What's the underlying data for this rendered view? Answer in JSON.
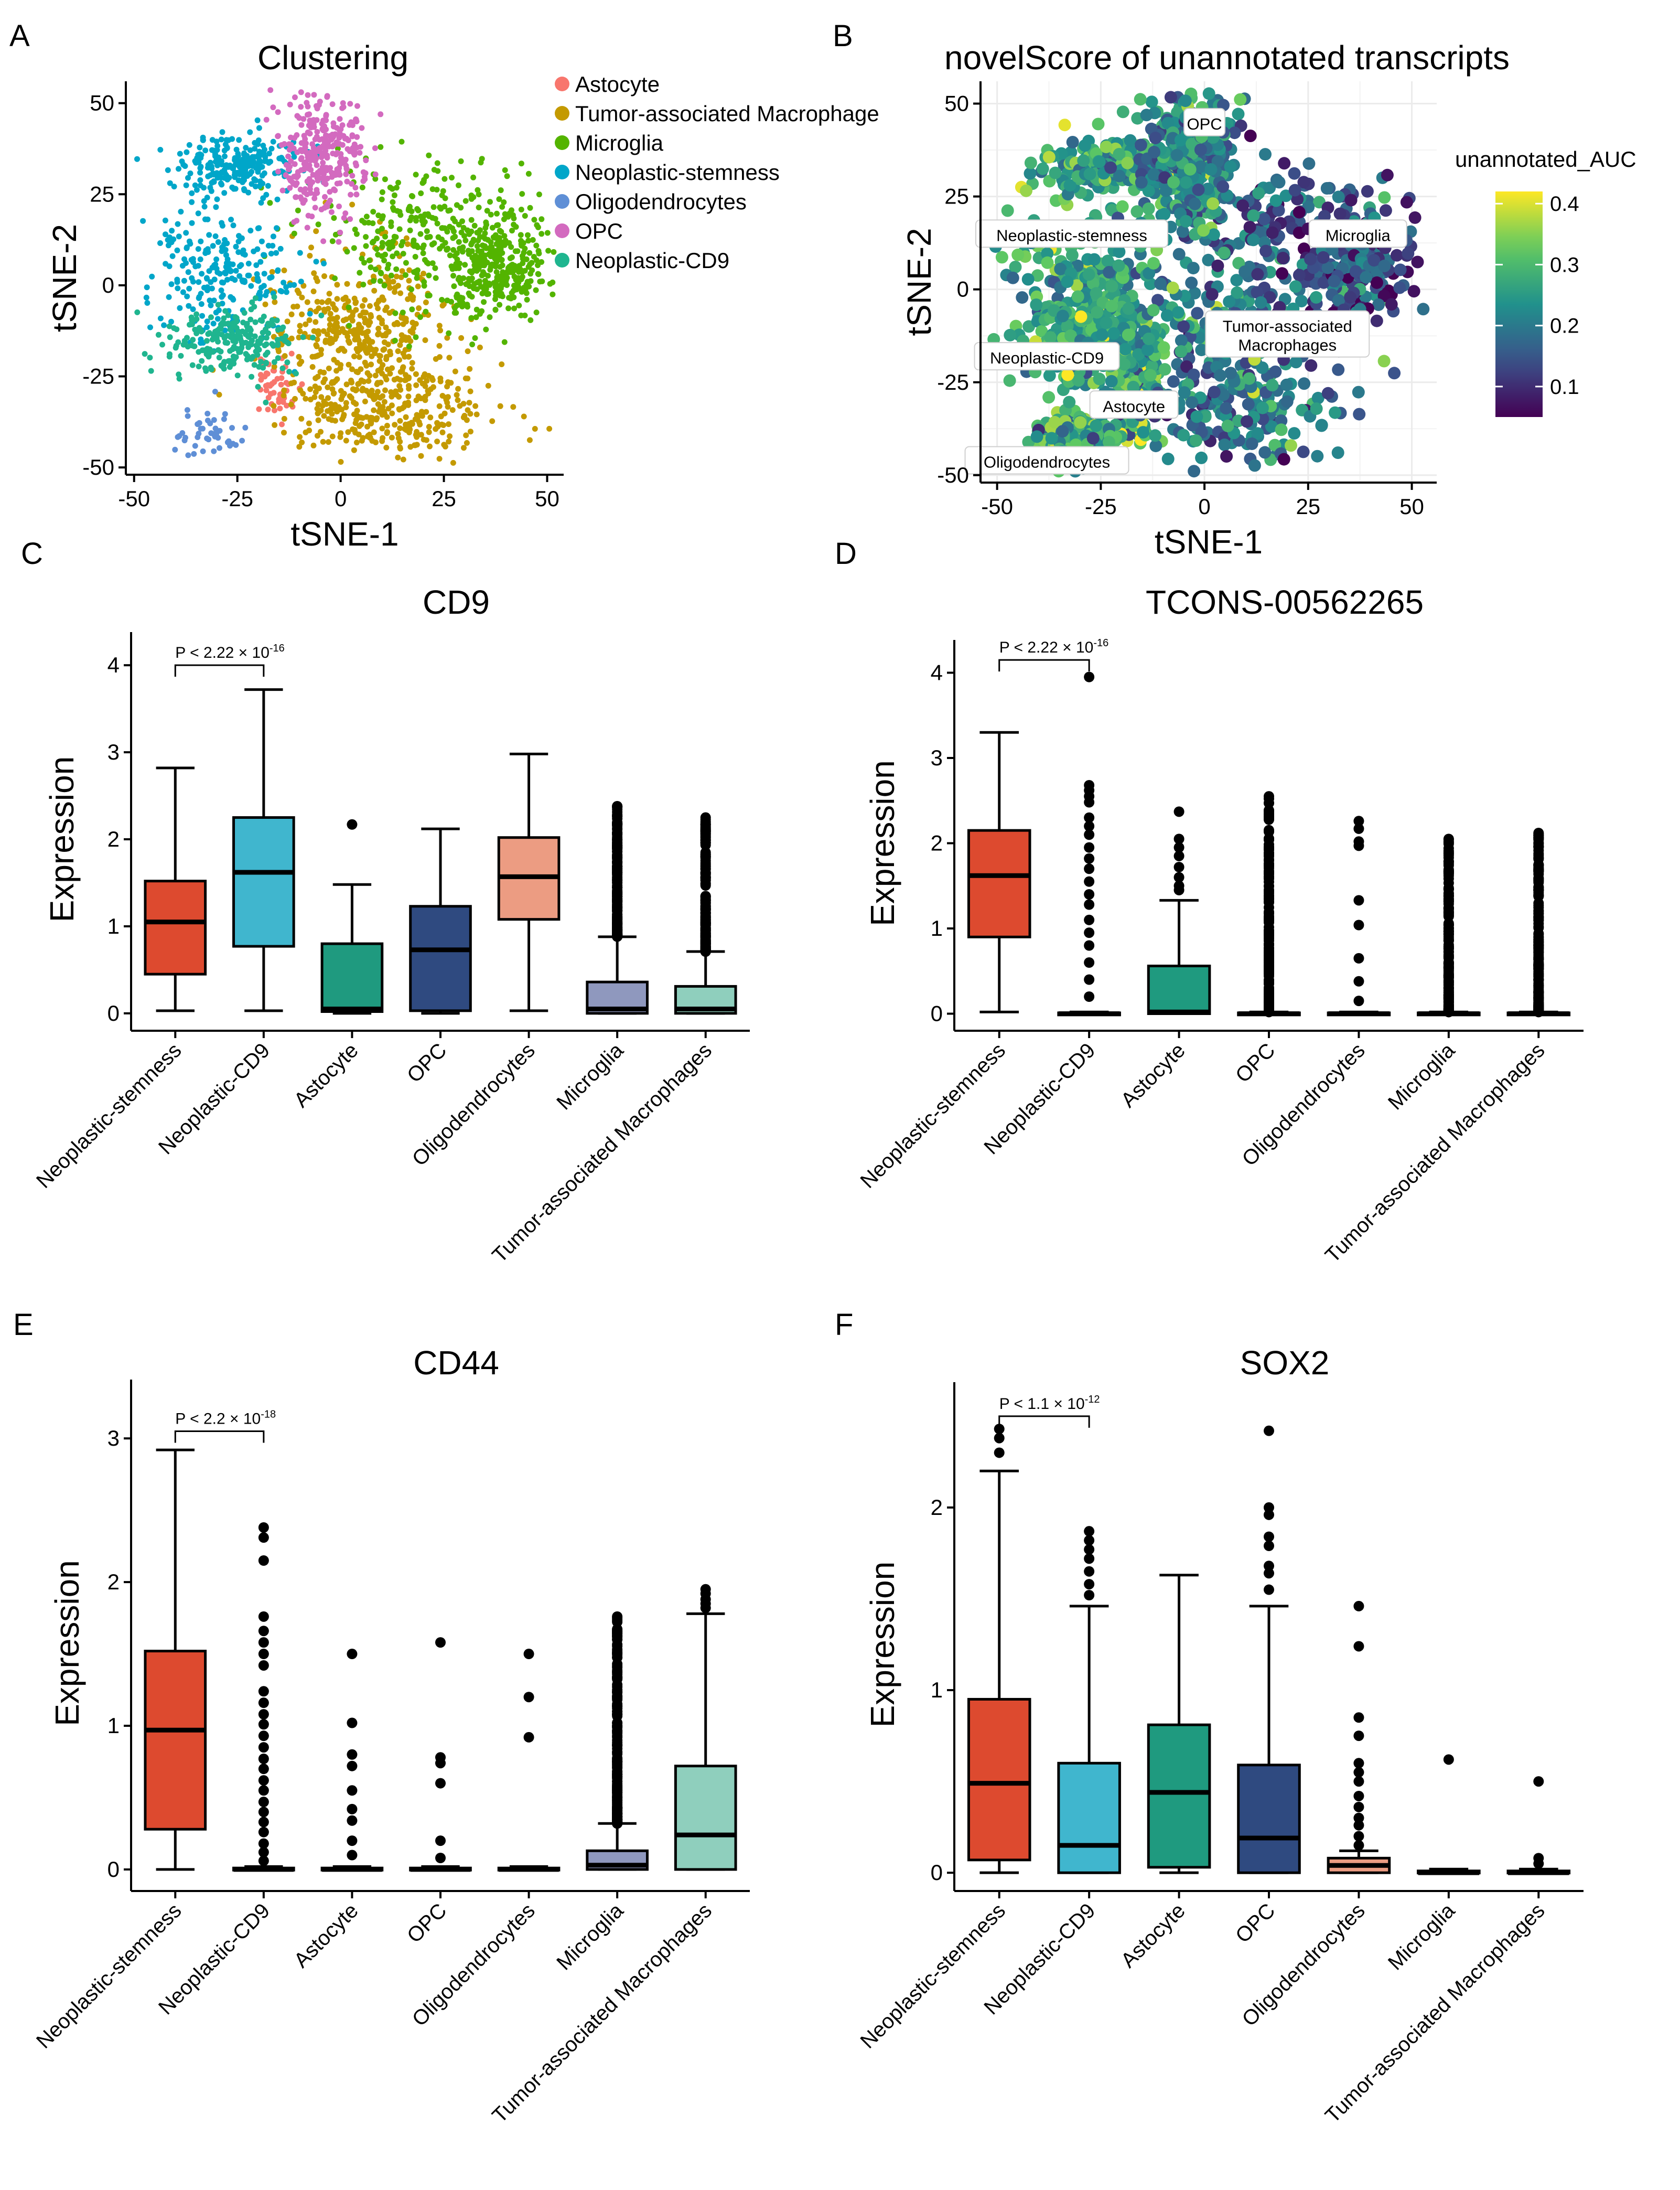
{
  "chart_data": [
    {
      "panel": "A",
      "type": "scatter",
      "title": "Clustering",
      "xlabel": "tSNE-1",
      "ylabel": "tSNE-2",
      "xlim": [
        -52,
        54
      ],
      "ylim": [
        -52,
        56
      ],
      "xticks": [
        -50,
        -25,
        0,
        25,
        50
      ],
      "yticks": [
        -50,
        -25,
        0,
        25,
        50
      ],
      "grid": false,
      "legend_position": "right",
      "legend": [
        {
          "label": "Astocyte",
          "color": "#F8766D"
        },
        {
          "label": "Tumor-associated Macrophage",
          "color": "#C49A00"
        },
        {
          "label": "Microglia",
          "color": "#53B400"
        },
        {
          "label": "Neoplastic-stemness",
          "color": "#00A6C9"
        },
        {
          "label": "Oligodendrocytes",
          "color": "#5F8FD6"
        },
        {
          "label": "OPC",
          "color": "#D36ABF"
        },
        {
          "label": "Neoplastic-CD9",
          "color": "#1FB58F"
        }
      ],
      "clusters": [
        {
          "name": "Astocyte",
          "color": "#F8766D",
          "n": 50,
          "regions": [
            {
              "cx": -16,
              "cy": -28,
              "sx": 2.2,
              "sy": 5
            }
          ]
        },
        {
          "name": "Tumor-associated Macrophage",
          "color": "#C49A00",
          "n": 700,
          "regions": [
            {
              "cx": 5,
              "cy": -10,
              "sx": 10,
              "sy": 10
            },
            {
              "cx": 10,
              "cy": -33,
              "sx": 12,
              "sy": 7
            }
          ]
        },
        {
          "name": "Microglia",
          "color": "#53B400",
          "n": 600,
          "regions": [
            {
              "cx": 22,
              "cy": 14,
              "sx": 13,
              "sy": 10
            },
            {
              "cx": 38,
              "cy": 5,
              "sx": 6,
              "sy": 7
            }
          ]
        },
        {
          "name": "Neoplastic-stemness",
          "color": "#00A6C9",
          "n": 480,
          "regions": [
            {
              "cx": -30,
              "cy": 5,
              "sx": 10,
              "sy": 9
            },
            {
              "cx": -25,
              "cy": 33,
              "sx": 8,
              "sy": 4
            }
          ]
        },
        {
          "name": "Oligodendrocytes",
          "color": "#5F8FD6",
          "n": 45,
          "regions": [
            {
              "cx": -32,
              "cy": -41,
              "sx": 4,
              "sy": 3
            }
          ]
        },
        {
          "name": "OPC",
          "color": "#D36ABF",
          "n": 320,
          "regions": [
            {
              "cx": -4,
              "cy": 36,
              "sx": 5.5,
              "sy": 9
            }
          ]
        },
        {
          "name": "Neoplastic-CD9",
          "color": "#1FB58F",
          "n": 230,
          "regions": [
            {
              "cx": -27,
              "cy": -15,
              "sx": 8,
              "sy": 5
            }
          ]
        }
      ]
    },
    {
      "panel": "B",
      "type": "scatter",
      "title": "novelScore of unannotated transcripts",
      "xlabel": "tSNE-1",
      "ylabel": "tSNE-2",
      "xlim": [
        -54,
        56
      ],
      "ylim": [
        -52,
        56
      ],
      "xticks": [
        -50,
        -25,
        0,
        25,
        50
      ],
      "yticks": [
        -50,
        -25,
        0,
        25,
        50
      ],
      "grid": true,
      "colorbar": {
        "title": "unannotated_AUC",
        "min": 0.05,
        "max": 0.42,
        "ticks": [
          0.1,
          0.2,
          0.3,
          0.4
        ]
      },
      "cluster_labels": [
        "OPC",
        "Neoplastic-stemness",
        "Microglia",
        "Tumor-associated\nMacrophages",
        "Neoplastic-CD9",
        "Astocyte",
        "Oligodendrocytes"
      ],
      "n_points": 2400
    },
    {
      "panel": "C",
      "type": "box",
      "title": "CD9",
      "ylabel": "Expression",
      "ylim": [
        -0.2,
        4.2
      ],
      "yticks": [
        0,
        1,
        2,
        3,
        4
      ],
      "categories": [
        "Neoplastic-stemness",
        "Neoplastic-CD9",
        "Astocyte",
        "OPC",
        "Oligodendrocytes",
        "Microglia",
        "Tumor-associated Macrophages"
      ],
      "colors": [
        "#DD4A2F",
        "#40B6CE",
        "#1F9A7F",
        "#2F4A80",
        "#EC9C82",
        "#8F98BE",
        "#8FCFBD"
      ],
      "boxes": [
        {
          "q1": 0.45,
          "median": 1.05,
          "q3": 1.52,
          "whislo": 0.03,
          "whishi": 2.82,
          "outliers": []
        },
        {
          "q1": 0.77,
          "median": 1.62,
          "q3": 2.25,
          "whislo": 0.03,
          "whishi": 3.72,
          "outliers": []
        },
        {
          "q1": 0.02,
          "median": 0.05,
          "q3": 0.8,
          "whislo": 0.0,
          "whishi": 1.48,
          "outliers": [
            2.17
          ]
        },
        {
          "q1": 0.03,
          "median": 0.73,
          "q3": 1.23,
          "whislo": 0.0,
          "whishi": 2.12,
          "outliers": []
        },
        {
          "q1": 1.08,
          "median": 1.57,
          "q3": 2.02,
          "whislo": 0.03,
          "whishi": 2.98,
          "outliers": []
        },
        {
          "q1": 0.0,
          "median": 0.05,
          "q3": 0.36,
          "whislo": 0.0,
          "whishi": 0.88,
          "outlier_range": [
            0.88,
            2.38
          ],
          "dense": true
        },
        {
          "q1": 0.0,
          "median": 0.05,
          "q3": 0.31,
          "whislo": 0.0,
          "whishi": 0.71,
          "outlier_range": [
            0.71,
            2.25
          ],
          "dense": true
        }
      ],
      "annotation": {
        "text_main": "P < 2.22 × 10",
        "text_exp": "-16",
        "from": 0,
        "to": 1,
        "y": 4.0
      }
    },
    {
      "panel": "D",
      "type": "box",
      "title": "TCONS-00562265",
      "ylabel": "Expression",
      "ylim": [
        -0.2,
        4.2
      ],
      "yticks": [
        0,
        1,
        2,
        3,
        4
      ],
      "categories": [
        "Neoplastic-stemness",
        "Neoplastic-CD9",
        "Astocyte",
        "OPC",
        "Oligodendrocytes",
        "Microglia",
        "Tumor-associated Macrophages"
      ],
      "colors": [
        "#DD4A2F",
        "#40B6CE",
        "#1F9A7F",
        "#2F4A80",
        "#EC9C82",
        "#8F98BE",
        "#8FCFBD"
      ],
      "boxes": [
        {
          "q1": 0.9,
          "median": 1.62,
          "q3": 2.15,
          "whislo": 0.02,
          "whishi": 3.3,
          "outliers": []
        },
        {
          "q1": 0.0,
          "median": 0.0,
          "q3": 0.01,
          "whislo": 0.0,
          "whishi": 0.02,
          "outliers": [
            3.95,
            2.68,
            2.62,
            2.55,
            2.48,
            2.3,
            2.2,
            2.1,
            1.95,
            1.82,
            1.7,
            1.55,
            1.4,
            1.28,
            1.1,
            0.95,
            0.8,
            0.6,
            0.4,
            0.2
          ]
        },
        {
          "q1": 0.0,
          "median": 0.02,
          "q3": 0.56,
          "whislo": 0.0,
          "whishi": 1.33,
          "outliers": [
            2.37,
            2.05,
            1.95,
            1.85,
            1.72,
            1.6,
            1.5,
            1.45
          ]
        },
        {
          "q1": 0.0,
          "median": 0.0,
          "q3": 0.01,
          "whislo": 0.0,
          "whishi": 0.02,
          "outlier_range": [
            0.02,
            2.55
          ],
          "dense": true
        },
        {
          "q1": 0.0,
          "median": 0.0,
          "q3": 0.01,
          "whislo": 0.0,
          "whishi": 0.02,
          "outliers": [
            2.26,
            2.17,
            2.02,
            1.97,
            1.33,
            1.04,
            0.65,
            0.38,
            0.15
          ]
        },
        {
          "q1": 0.0,
          "median": 0.0,
          "q3": 0.01,
          "whislo": 0.0,
          "whishi": 0.02,
          "outlier_range": [
            0.02,
            2.05
          ],
          "dense": true
        },
        {
          "q1": 0.0,
          "median": 0.0,
          "q3": 0.01,
          "whislo": 0.0,
          "whishi": 0.02,
          "outlier_range": [
            0.02,
            2.12
          ],
          "dense": true
        }
      ],
      "annotation": {
        "text_main": "P < 2.22 × 10",
        "text_exp": "-16",
        "from": 0,
        "to": 1,
        "y": 4.15
      }
    },
    {
      "panel": "E",
      "type": "box",
      "title": "CD44",
      "ylabel": "Expression",
      "ylim": [
        -0.15,
        3.3
      ],
      "yticks": [
        0,
        1,
        2,
        3
      ],
      "categories": [
        "Neoplastic-stemness",
        "Neoplastic-CD9",
        "Astocyte",
        "OPC",
        "Oligodendrocytes",
        "Microglia",
        "Tumor-associated Macrophages"
      ],
      "colors": [
        "#DD4A2F",
        "#40B6CE",
        "#1F9A7F",
        "#2F4A80",
        "#EC9C82",
        "#8F98BE",
        "#8FCFBD"
      ],
      "boxes": [
        {
          "q1": 0.28,
          "median": 0.97,
          "q3": 1.52,
          "whislo": 0.0,
          "whishi": 2.92,
          "outliers": []
        },
        {
          "q1": 0.0,
          "median": 0.0,
          "q3": 0.01,
          "whislo": 0.0,
          "whishi": 0.02,
          "outliers": [
            2.38,
            2.31,
            2.15,
            1.76,
            1.66,
            1.58,
            1.5,
            1.42,
            1.24,
            1.16,
            1.08,
            1.01,
            0.93,
            0.85,
            0.77,
            0.7,
            0.62,
            0.55,
            0.47,
            0.4,
            0.33,
            0.26,
            0.18,
            0.12,
            0.06
          ]
        },
        {
          "q1": 0.0,
          "median": 0.0,
          "q3": 0.01,
          "whislo": 0.0,
          "whishi": 0.02,
          "outliers": [
            1.5,
            1.02,
            0.8,
            0.72,
            0.55,
            0.42,
            0.34,
            0.2,
            0.1
          ]
        },
        {
          "q1": 0.0,
          "median": 0.0,
          "q3": 0.01,
          "whislo": 0.0,
          "whishi": 0.02,
          "outliers": [
            1.58,
            0.78,
            0.74,
            0.6,
            0.2,
            0.08
          ]
        },
        {
          "q1": 0.0,
          "median": 0.0,
          "q3": 0.01,
          "whislo": 0.0,
          "whishi": 0.02,
          "outliers": [
            1.5,
            1.2,
            0.92
          ]
        },
        {
          "q1": 0.0,
          "median": 0.03,
          "q3": 0.13,
          "whislo": 0.0,
          "whishi": 0.32,
          "outlier_range": [
            0.32,
            1.76
          ],
          "dense": true
        },
        {
          "q1": 0.0,
          "median": 0.24,
          "q3": 0.72,
          "whislo": 0.0,
          "whishi": 1.78,
          "outliers": [
            1.95,
            1.92,
            1.88,
            1.85,
            1.82
          ]
        }
      ],
      "annotation": {
        "text_main": "P < 2.2 × 10",
        "text_exp": "-18",
        "from": 0,
        "to": 1,
        "y": 3.05
      }
    },
    {
      "panel": "F",
      "type": "box",
      "title": "SOX2",
      "ylabel": "Expression",
      "ylim": [
        -0.1,
        2.6
      ],
      "yticks": [
        0,
        1,
        2
      ],
      "categories": [
        "Neoplastic-stemness",
        "Neoplastic-CD9",
        "Astocyte",
        "OPC",
        "Oligodendrocytes",
        "Microglia",
        "Tumor-associated Macrophages"
      ],
      "colors": [
        "#DD4A2F",
        "#40B6CE",
        "#1F9A7F",
        "#2F4A80",
        "#EC9C82",
        "#8F98BE",
        "#8FCFBD"
      ],
      "boxes": [
        {
          "q1": 0.07,
          "median": 0.49,
          "q3": 0.95,
          "whislo": 0.0,
          "whishi": 2.2,
          "outliers": [
            2.43,
            2.38,
            2.3
          ]
        },
        {
          "q1": 0.0,
          "median": 0.15,
          "q3": 0.6,
          "whislo": 0.0,
          "whishi": 1.46,
          "outliers": [
            1.87,
            1.82,
            1.77,
            1.72,
            1.65,
            1.58,
            1.52
          ]
        },
        {
          "q1": 0.03,
          "median": 0.44,
          "q3": 0.81,
          "whislo": 0.0,
          "whishi": 1.63,
          "outliers": []
        },
        {
          "q1": 0.0,
          "median": 0.19,
          "q3": 0.59,
          "whislo": 0.0,
          "whishi": 1.46,
          "outliers": [
            2.42,
            2.0,
            1.96,
            1.84,
            1.79,
            1.68,
            1.64,
            1.55
          ]
        },
        {
          "q1": 0.0,
          "median": 0.04,
          "q3": 0.08,
          "whislo": 0.0,
          "whishi": 0.12,
          "outliers": [
            1.46,
            1.24,
            0.85,
            0.75,
            0.6,
            0.55,
            0.5,
            0.42,
            0.36,
            0.3,
            0.26,
            0.2,
            0.15
          ]
        },
        {
          "q1": 0.0,
          "median": 0.0,
          "q3": 0.01,
          "whislo": 0.0,
          "whishi": 0.02,
          "outliers": [
            0.62
          ]
        },
        {
          "q1": 0.0,
          "median": 0.0,
          "q3": 0.01,
          "whislo": 0.0,
          "whishi": 0.02,
          "outliers": [
            0.5,
            0.08,
            0.05
          ]
        }
      ],
      "annotation": {
        "text_main": "P < 1.1 × 10",
        "text_exp": "-12",
        "from": 0,
        "to": 1,
        "y": 2.5
      }
    }
  ]
}
